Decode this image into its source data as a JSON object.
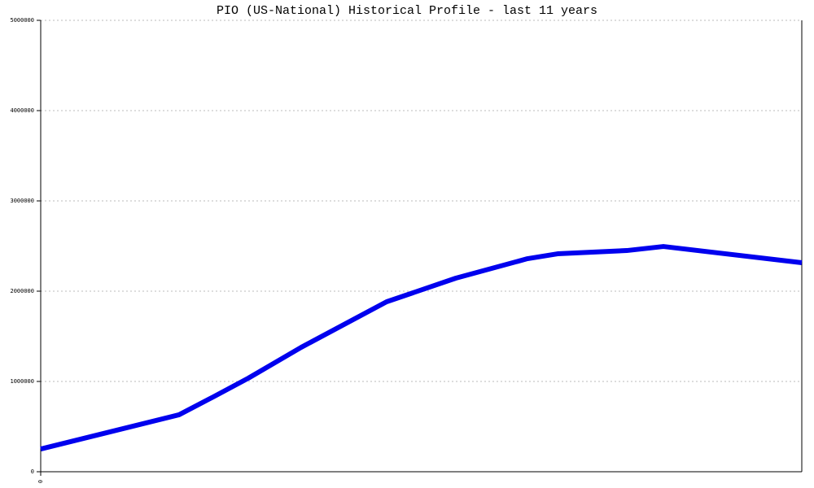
{
  "chart_data": {
    "type": "line",
    "title": "PIO (US-National) Historical Profile - last 11 years",
    "x": [
      0,
      170,
      212,
      255,
      320,
      425,
      510,
      598,
      635,
      720,
      765,
      935
    ],
    "series": [
      {
        "color": "#0000ee",
        "values": [
          252000,
          631000,
          829000,
          1036000,
          1378000,
          1883000,
          2144000,
          2360000,
          2414000,
          2450000,
          2495000,
          2315000
        ]
      }
    ],
    "xlim": [
      0,
      935
    ],
    "xticks": [
      0
    ],
    "ylim": [
      0,
      5000000
    ],
    "yticks": [
      0,
      1000000,
      2000000,
      3000000,
      4000000,
      5000000
    ],
    "grid": true
  }
}
